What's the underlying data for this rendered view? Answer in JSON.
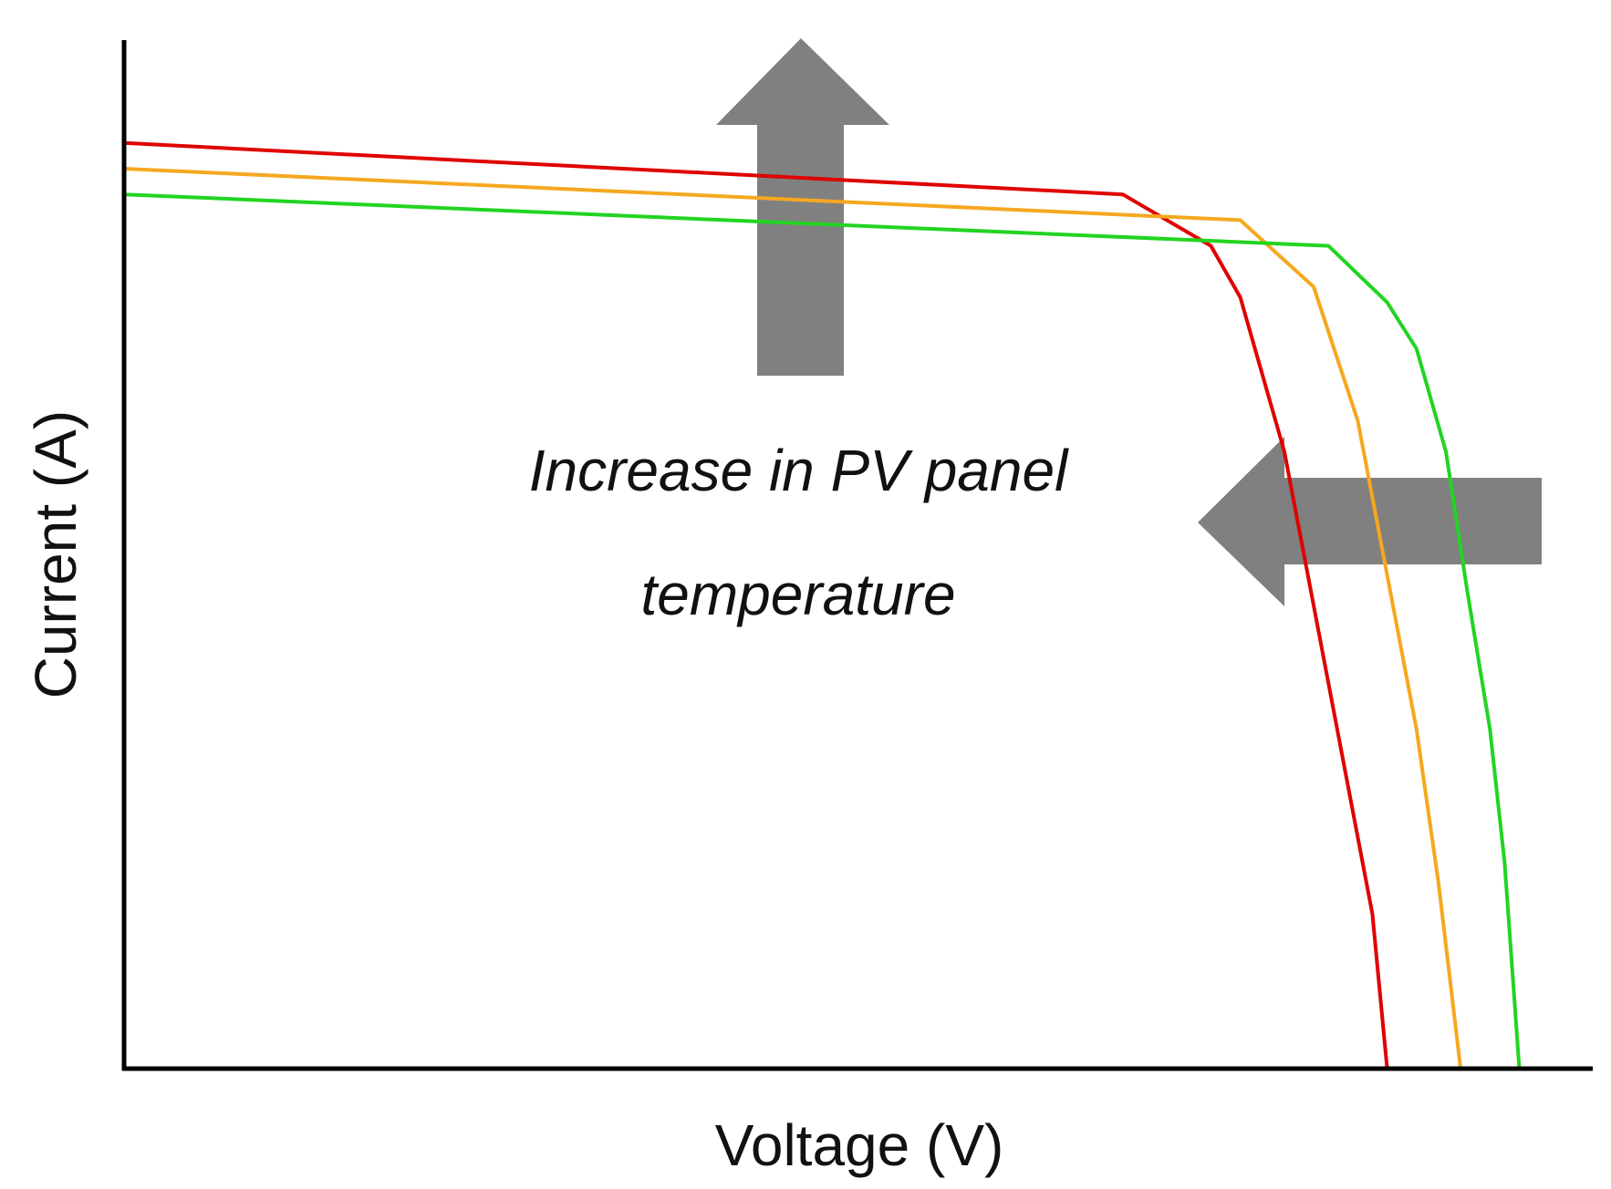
{
  "chart_data": {
    "type": "line",
    "title": "",
    "xlabel": "Voltage (V)",
    "ylabel": "Current (A)",
    "xlim": [
      0,
      100
    ],
    "ylim": [
      0,
      100
    ],
    "grid": false,
    "legend": "none",
    "annotation": {
      "lines": [
        "Increase in PV panel",
        "temperature"
      ]
    },
    "arrows": [
      {
        "name": "current-increase-arrow",
        "direction": "up",
        "color": "#808080"
      },
      {
        "name": "voltage-decrease-arrow",
        "direction": "left",
        "color": "#808080"
      }
    ],
    "series": [
      {
        "name": "red-curve",
        "color": "#e00000",
        "points": [
          [
            0,
            90
          ],
          [
            68,
            85
          ],
          [
            74,
            80
          ],
          [
            76,
            75
          ],
          [
            79,
            60
          ],
          [
            81,
            45
          ],
          [
            83,
            30
          ],
          [
            85,
            15
          ],
          [
            86,
            0
          ]
        ]
      },
      {
        "name": "orange-curve",
        "color": "#f5a820",
        "points": [
          [
            0,
            87.5
          ],
          [
            76,
            82.5
          ],
          [
            81,
            76
          ],
          [
            84,
            63
          ],
          [
            86,
            48
          ],
          [
            88,
            33
          ],
          [
            89.5,
            18
          ],
          [
            91,
            0
          ]
        ]
      },
      {
        "name": "green-curve",
        "color": "#22d422",
        "points": [
          [
            0,
            85
          ],
          [
            82,
            80
          ],
          [
            86,
            74.5
          ],
          [
            88,
            70
          ],
          [
            90,
            60
          ],
          [
            91.5,
            46
          ],
          [
            93,
            33
          ],
          [
            94,
            20
          ],
          [
            95,
            0
          ]
        ]
      }
    ]
  }
}
